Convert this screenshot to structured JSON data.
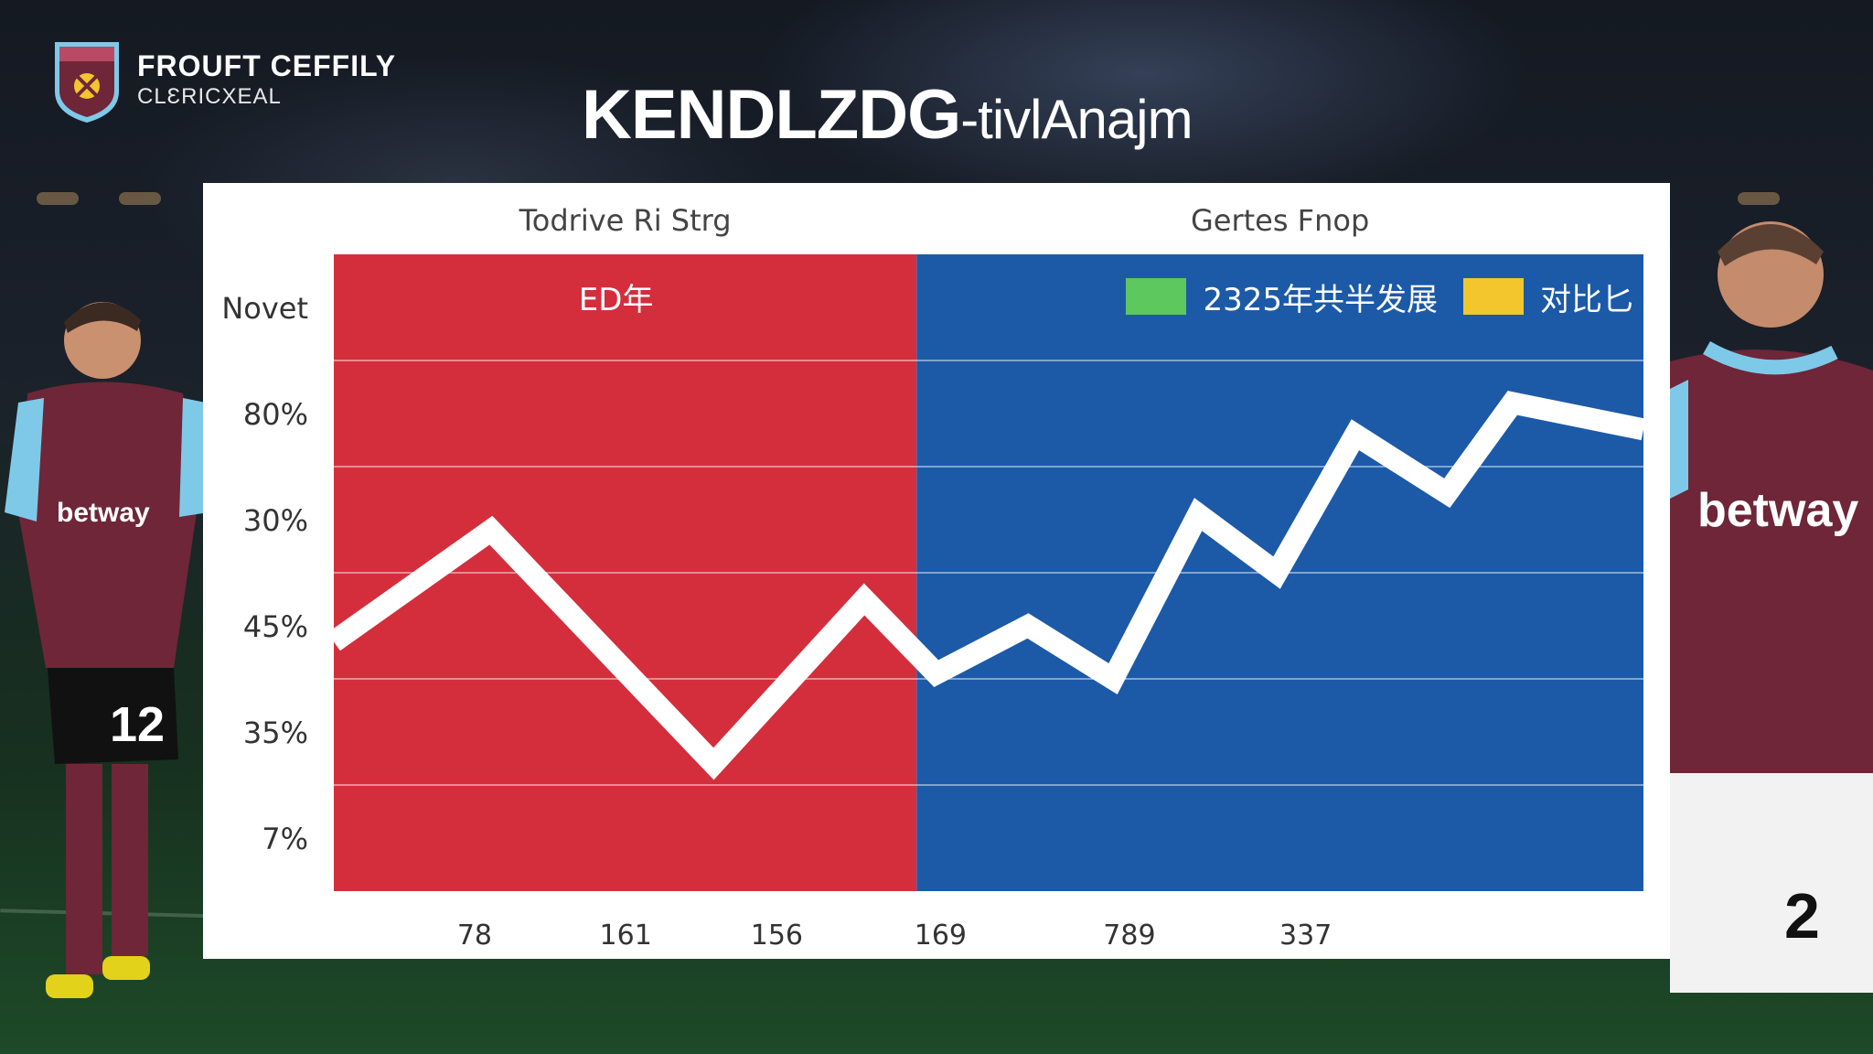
{
  "brand": {
    "name": "FROUFT CEFFILY",
    "subtitle": "CLƐRICXEAL"
  },
  "headline": {
    "bold": "KENDLZDG",
    "thin": "-tivlAnajm"
  },
  "sponsor": "betway",
  "jersey_numbers": [
    "12",
    "2"
  ],
  "colors": {
    "left_panel": "#d42e3c",
    "right_panel": "#1c5aa8",
    "line": "#ffffff",
    "legend_green": "#5cc85e",
    "legend_yellow": "#f2c62c",
    "kit_claret": "#6e2638",
    "kit_blue": "#7ec9e8"
  },
  "chart_data": {
    "type": "line",
    "panel_titles": [
      "Todrive Ri Strg",
      "Gertes Fnop"
    ],
    "inner_label": "ED年",
    "legend": [
      {
        "label": "2325年共半发展",
        "color": "#5cc85e"
      },
      {
        "label": "对比匕",
        "color": "#f2c62c"
      }
    ],
    "y_tick_labels": [
      "Novet",
      "80%",
      "30%",
      "45%",
      "35%",
      "7%"
    ],
    "x_tick_labels": [
      "78",
      "161",
      "156",
      "169",
      "789",
      "337"
    ],
    "ylim": [
      0,
      6
    ],
    "xlim": [
      0,
      10
    ],
    "grid": true,
    "split_at": 4.45,
    "series": [
      {
        "x": [
          0,
          1.2,
          2.9,
          4.05,
          4.6,
          5.3,
          5.95,
          6.6,
          7.2,
          7.8,
          8.5,
          9.0,
          10
        ],
        "y": [
          2.35,
          3.4,
          1.2,
          2.75,
          2.05,
          2.5,
          2.0,
          3.55,
          3.0,
          4.3,
          3.75,
          4.6,
          4.35
        ]
      }
    ]
  }
}
